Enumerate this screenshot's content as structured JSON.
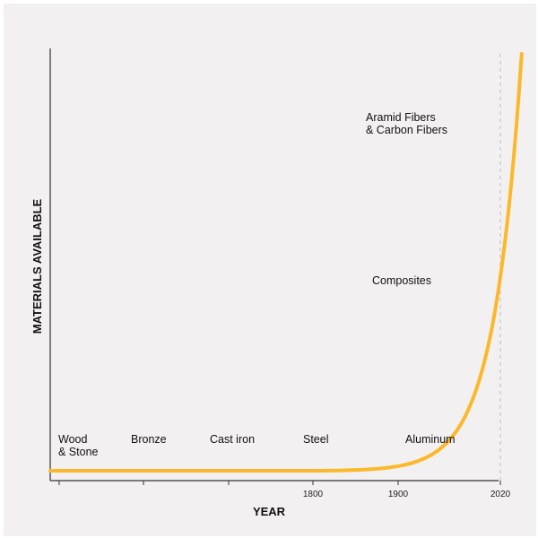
{
  "chart_data": {
    "type": "line",
    "title": "",
    "xlabel": "YEAR",
    "ylabel": "MATERIALS AVAILABLE",
    "x_ticks": [
      1800,
      1900,
      2020
    ],
    "x_ticks_unlabeled": 3,
    "reference_line": {
      "x": 2020,
      "style": "dashed"
    },
    "grid": false,
    "legend": "none",
    "series": [
      {
        "color": "#fbb82b",
        "shape": "flat baseline, then exponential rise beginning after about 1800"
      }
    ],
    "annotations": [
      {
        "text": [
          "Wood",
          "& Stone"
        ]
      },
      {
        "text": [
          "Bronze"
        ]
      },
      {
        "text": [
          "Cast iron"
        ]
      },
      {
        "text": [
          "Steel"
        ]
      },
      {
        "text": [
          "Aluminum"
        ]
      },
      {
        "text": [
          "Composites"
        ]
      },
      {
        "text": [
          "Aramid Fibers",
          "& Carbon Fibers"
        ]
      }
    ]
  },
  "colors": {
    "background": "#f3f0f1",
    "curve": "#fbb82b",
    "axis": "#333333",
    "reference_line": "#bbbbbb"
  }
}
